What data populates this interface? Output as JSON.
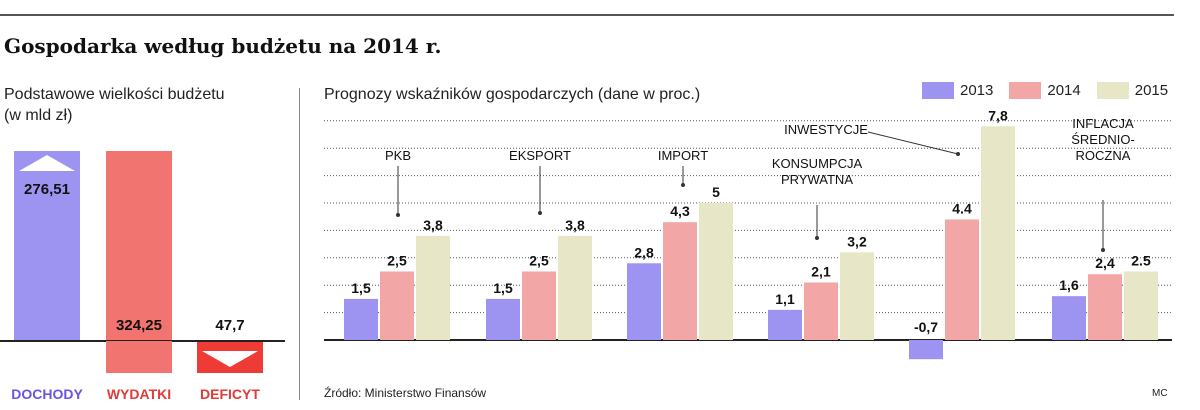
{
  "title": "Gospodarka według budżetu na 2014 r.",
  "left_subtitle_line1": "Podstawowe wielkości budżetu",
  "left_subtitle_line2": "(w mld zł)",
  "right_subtitle": "Prognozy wskaźników gospodarczych (dane w proc.)",
  "source": "Źródło: Ministerstwo Finansów",
  "credit": "MC",
  "colors": {
    "s2013": "#9d93f0",
    "s2014": "#f2a6a6",
    "s2015": "#e7e6c6",
    "dochody": "#9d93f0",
    "wydatki": "#f27470",
    "deficyt": "#ee3b36",
    "dochody_label": "#6a55e0",
    "wydatki_label": "#e23a36"
  },
  "chart_data": [
    {
      "type": "bar",
      "categories": [
        "DOCHODY",
        "WYDATKI",
        "DEFICYT"
      ],
      "values": [
        276.51,
        324.25,
        47.7
      ],
      "value_labels": [
        "276,51",
        "324,25",
        "47,7"
      ],
      "directions": [
        "up",
        "down",
        "down"
      ],
      "title": "Podstawowe wielkości budżetu (w mld zł)"
    },
    {
      "type": "bar",
      "title": "Prognozy wskaźników gospodarczych (dane w proc.)",
      "categories": [
        "PKB",
        "EKSPORT",
        "IMPORT",
        "KONSUMPCJA PRYWATNA",
        "INWESTYCJE",
        "INFLACJA ŚREDNIO-ROCZNA"
      ],
      "category_lines": [
        [
          "PKB"
        ],
        [
          "EKSPORT"
        ],
        [
          "IMPORT"
        ],
        [
          "KONSUMPCJA",
          "PRYWATNA"
        ],
        [
          "INWESTYCJE"
        ],
        [
          "INFLACJA",
          "ŚREDNIO-",
          "ROCZNA"
        ]
      ],
      "series": [
        {
          "name": "2013",
          "values": [
            1.5,
            1.5,
            2.8,
            1.1,
            -0.7,
            1.6
          ],
          "labels": [
            "1,5",
            "1,5",
            "2,8",
            "1,1",
            "-0,7",
            "1,6"
          ]
        },
        {
          "name": "2014",
          "values": [
            2.5,
            2.5,
            4.3,
            2.1,
            4.4,
            2.4
          ],
          "labels": [
            "2,5",
            "2,5",
            "4,3",
            "2,1",
            "4.4",
            "2,4"
          ]
        },
        {
          "name": "2015",
          "values": [
            3.8,
            3.8,
            5,
            3.2,
            7.8,
            2.5
          ],
          "labels": [
            "3,8",
            "3,8",
            "5",
            "3,2",
            "7,8",
            "2.5"
          ]
        }
      ],
      "ylim": [
        -0.7,
        8
      ],
      "grid": true,
      "legend": "top-right"
    }
  ]
}
